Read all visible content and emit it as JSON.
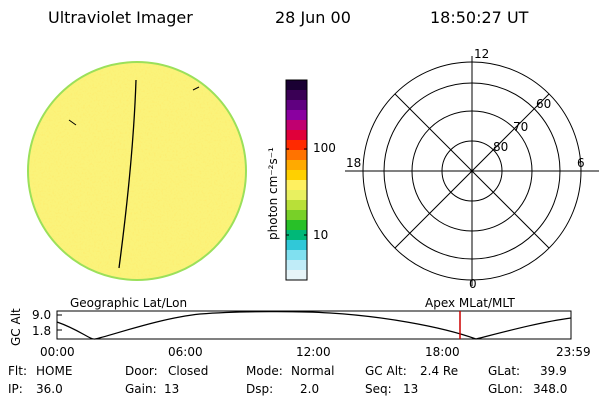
{
  "header": {
    "instrument": "Ultraviolet Imager",
    "date": "28 Jun 00",
    "time": "18:50:27 UT"
  },
  "colorbar": {
    "label": "photon cm⁻²s⁻¹",
    "ticks": [
      "100",
      "10"
    ],
    "colors_top_to_bottom": [
      "#1a0033",
      "#3a0055",
      "#600080",
      "#8a00a0",
      "#c00070",
      "#e0003a",
      "#ff2a00",
      "#ff7300",
      "#ffaa00",
      "#ffd000",
      "#fff060",
      "#e8f060",
      "#b8e038",
      "#78d028",
      "#28c028",
      "#00b878",
      "#30c8d8",
      "#80e0f0",
      "#c0ecf8",
      "#e6f4f8"
    ]
  },
  "polar_grid": {
    "mlt_labels": [
      "12",
      "18",
      "6",
      "0"
    ],
    "mlat_labels": [
      "60",
      "70",
      "80"
    ]
  },
  "orbit_plot": {
    "left_title": "Geographic Lat/Lon",
    "right_title": "Apex MLat/MLT",
    "ylabel": "GC Alt",
    "yticks": [
      "9.0",
      "1.8"
    ],
    "xticks": [
      "00:00",
      "06:00",
      "12:00",
      "18:00",
      "23:59"
    ],
    "current_time_color": "#cc0000"
  },
  "status": {
    "row1": [
      {
        "label": "Flt:",
        "value": "HOME"
      },
      {
        "label": "Door:",
        "value": "Closed"
      },
      {
        "label": "Mode:",
        "value": "Normal"
      },
      {
        "label": "GC Alt:",
        "value": "2.4 Re"
      },
      {
        "label": "GLat:",
        "value": "39.9"
      }
    ],
    "row2": [
      {
        "label": "IP:",
        "value": "36.0"
      },
      {
        "label": "Gain:",
        "value": "13"
      },
      {
        "label": "Dsp:",
        "value": "2.0"
      },
      {
        "label": "Seq:",
        "value": "13"
      },
      {
        "label": "GLon:",
        "value": "348.0"
      }
    ]
  }
}
